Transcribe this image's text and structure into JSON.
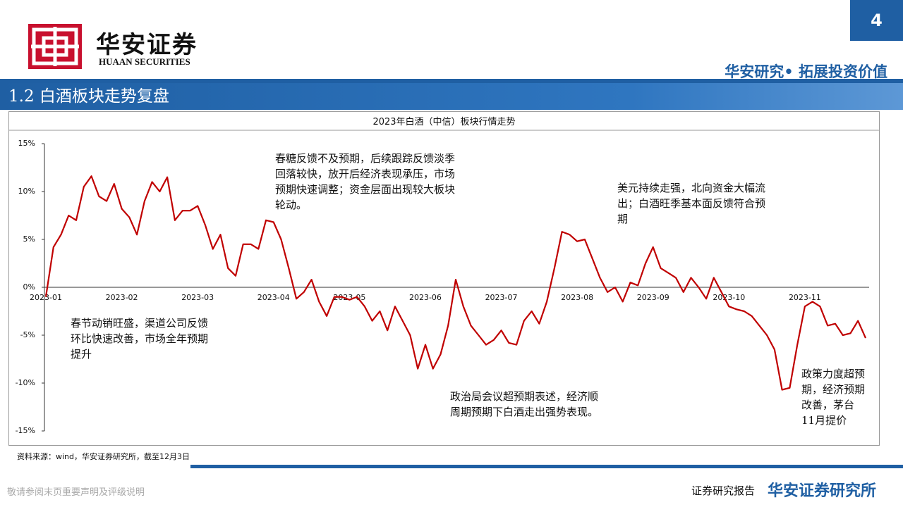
{
  "header": {
    "page": "4",
    "brand_cn": "华安证券",
    "brand_en": "HUAAN SECURITIES",
    "slogan": "华安研究• 拓展投资价值",
    "section": "1.2 白酒板块走势复盘"
  },
  "footer": {
    "source": "资料来源：wind，华安证券研究所，截至12月3日",
    "disclaimer": "敬请参阅末页重要声明及评级说明",
    "report": "证券研究报告",
    "institute": "华安证券研究所"
  },
  "chart_data": {
    "type": "line",
    "title": "2023年白酒（中信）板块行情走势",
    "categories": [
      "2023-01",
      null,
      null,
      null,
      null,
      null,
      null,
      null,
      null,
      null,
      "2023-02",
      null,
      null,
      null,
      null,
      null,
      null,
      null,
      null,
      null,
      "2023-03",
      null,
      null,
      null,
      null,
      null,
      null,
      null,
      null,
      null,
      "2023-04",
      null,
      null,
      null,
      null,
      null,
      null,
      null,
      null,
      null,
      "2023-05",
      null,
      null,
      null,
      null,
      null,
      null,
      null,
      null,
      null,
      "2023-06",
      null,
      null,
      null,
      null,
      null,
      null,
      null,
      null,
      null,
      "2023-07",
      null,
      null,
      null,
      null,
      null,
      null,
      null,
      null,
      null,
      "2023-08",
      null,
      null,
      null,
      null,
      null,
      null,
      null,
      null,
      null,
      "2023-09",
      null,
      null,
      null,
      null,
      null,
      null,
      null,
      null,
      null,
      "2023-10",
      null,
      null,
      null,
      null,
      null,
      null,
      null,
      null,
      null,
      "2023-11",
      null,
      null,
      null,
      null,
      null,
      null,
      null,
      null
    ],
    "series": [
      {
        "name": "白酒（中信）",
        "color": "#c00000",
        "values": [
          -1,
          4.2,
          5.5,
          7.5,
          7,
          10.5,
          11.6,
          9.5,
          9,
          10.8,
          8.2,
          7.3,
          5.5,
          9,
          11,
          10,
          11.5,
          7,
          8,
          8,
          8.5,
          6.5,
          4,
          5.5,
          2,
          1.2,
          4.5,
          4.5,
          4,
          7,
          6.8,
          5,
          2,
          -1.2,
          -0.5,
          0.8,
          -1.5,
          -3,
          -1,
          -1,
          -1.3,
          -1,
          -2,
          -3.5,
          -2.5,
          -4.5,
          -2,
          -3.5,
          -5,
          -8.5,
          -6,
          -8.5,
          -7,
          -4,
          0.8,
          -2,
          -4,
          -5,
          -6,
          -5.5,
          -4.5,
          -5.8,
          -6,
          -3.5,
          -2.5,
          -3.8,
          -1.5,
          2,
          5.8,
          5.5,
          4.8,
          5,
          3,
          1,
          -0.5,
          0,
          -1.5,
          0.5,
          0.2,
          2.5,
          4.2,
          2,
          1.5,
          1,
          -0.5,
          1,
          0,
          -1.2,
          1,
          -0.5,
          -2,
          -2.3,
          -2.5,
          -3,
          -4,
          -5,
          -6.5,
          -10.7,
          -10.5,
          -6,
          -2,
          -1.5,
          -2,
          -4,
          -3.8,
          -5,
          -4.8,
          -3.5,
          -5.3
        ]
      }
    ],
    "ylim": [
      -15,
      15
    ],
    "yticks": [
      {
        "value": -15,
        "label": "-15%"
      },
      {
        "value": -10,
        "label": "-10%"
      },
      {
        "value": -5,
        "label": "-5%"
      },
      {
        "value": 0,
        "label": "0%"
      },
      {
        "value": 5,
        "label": "5%"
      },
      {
        "value": 10,
        "label": "10%"
      },
      {
        "value": 15,
        "label": "15%"
      }
    ],
    "annotations": [
      "春糖反馈不及预期，后续跟踪反馈淡季回落较快，放开后经济表现承压，市场预期快速调整；资金层面出现较大板块轮动。",
      "美元持续走强，北向资金大幅流出；白酒旺季基本面反馈符合预期",
      "春节动销旺盛，渠道公司反馈环比快速改善，市场全年预期提升",
      "政治局会议超预期表述，经济顺周期预期下白酒走出强势表现。",
      "政策力度超预期，经济预期改善，茅台11月提价"
    ]
  }
}
